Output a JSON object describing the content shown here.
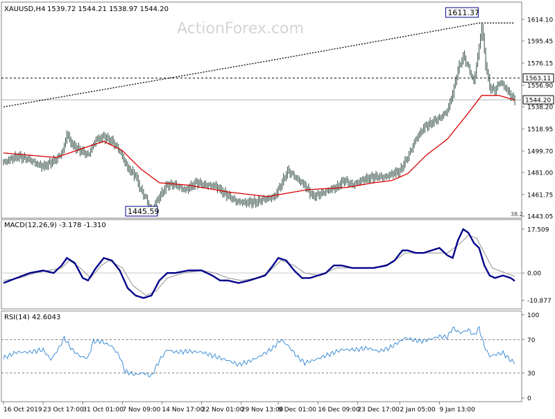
{
  "chart_data": [
    {
      "type": "candlestick",
      "symbol_label": "XAUUSD,H4",
      "ohlc_label": "1539.72 1544.21 1538.97 1544.20",
      "watermark": "ActionForex.com",
      "y_ticks": [
        "1614.10",
        "1595.45",
        "1576.15",
        "1556.90",
        "1538.20",
        "1518.95",
        "1499.70",
        "1481.00",
        "1461.75",
        "1443.05"
      ],
      "y_tick_values": [
        1614.1,
        1595.45,
        1576.15,
        1556.9,
        1538.2,
        1518.95,
        1499.7,
        1481.0,
        1461.75,
        1443.05
      ],
      "ylim": [
        1443.05,
        1626.2
      ],
      "fib_label": "38.2",
      "labels": {
        "high": "1611.37",
        "low": "1445.59",
        "level_1": "1563.11",
        "level_2": "1544.20"
      },
      "levels": [
        1563.11,
        1544.2
      ],
      "lows_marked": 1445.59,
      "highs_marked": 1611.37,
      "price_anchors": [
        [
          0,
          1490
        ],
        [
          10,
          1495
        ],
        [
          20,
          1492
        ],
        [
          30,
          1486
        ],
        [
          40,
          1492
        ],
        [
          45,
          1500
        ],
        [
          48,
          1515
        ],
        [
          52,
          1505
        ],
        [
          58,
          1500
        ],
        [
          64,
          1496
        ],
        [
          70,
          1510
        ],
        [
          76,
          1512
        ],
        [
          82,
          1508
        ],
        [
          88,
          1500
        ],
        [
          94,
          1485
        ],
        [
          100,
          1478
        ],
        [
          104,
          1465
        ],
        [
          108,
          1458
        ],
        [
          112,
          1448
        ],
        [
          118,
          1460
        ],
        [
          124,
          1470
        ],
        [
          130,
          1470
        ],
        [
          138,
          1466
        ],
        [
          146,
          1472
        ],
        [
          152,
          1470
        ],
        [
          160,
          1470
        ],
        [
          168,
          1462
        ],
        [
          176,
          1456
        ],
        [
          184,
          1455
        ],
        [
          192,
          1455
        ],
        [
          198,
          1458
        ],
        [
          205,
          1460
        ],
        [
          210,
          1470
        ],
        [
          215,
          1482
        ],
        [
          220,
          1478
        ],
        [
          228,
          1470
        ],
        [
          234,
          1460
        ],
        [
          240,
          1462
        ],
        [
          246,
          1466
        ],
        [
          252,
          1468
        ],
        [
          258,
          1474
        ],
        [
          264,
          1470
        ],
        [
          270,
          1474
        ],
        [
          276,
          1476
        ],
        [
          282,
          1477
        ],
        [
          288,
          1477
        ],
        [
          294,
          1480
        ],
        [
          300,
          1482
        ],
        [
          306,
          1494
        ],
        [
          312,
          1510
        ],
        [
          318,
          1520
        ],
        [
          324,
          1524
        ],
        [
          330,
          1528
        ],
        [
          336,
          1535
        ],
        [
          340,
          1550
        ],
        [
          344,
          1570
        ],
        [
          348,
          1582
        ],
        [
          352,
          1572
        ],
        [
          356,
          1560
        ],
        [
          360,
          1590
        ],
        [
          362,
          1609
        ],
        [
          365,
          1575
        ],
        [
          368,
          1555
        ],
        [
          372,
          1552
        ],
        [
          376,
          1560
        ],
        [
          380,
          1555
        ],
        [
          384,
          1548
        ],
        [
          387,
          1544
        ]
      ],
      "ma_red_anchors": [
        [
          0,
          1498
        ],
        [
          20,
          1496
        ],
        [
          40,
          1494
        ],
        [
          60,
          1502
        ],
        [
          76,
          1508
        ],
        [
          90,
          1500
        ],
        [
          104,
          1484
        ],
        [
          118,
          1472
        ],
        [
          140,
          1470
        ],
        [
          170,
          1464
        ],
        [
          200,
          1460
        ],
        [
          230,
          1466
        ],
        [
          260,
          1468
        ],
        [
          280,
          1472
        ],
        [
          294,
          1474
        ],
        [
          306,
          1480
        ],
        [
          320,
          1496
        ],
        [
          336,
          1510
        ],
        [
          350,
          1530
        ],
        [
          362,
          1548
        ],
        [
          375,
          1548
        ],
        [
          387,
          1544
        ]
      ],
      "ma_black_anchors": [
        [
          0,
          1538
        ],
        [
          200,
          1578
        ],
        [
          360,
          1611
        ]
      ],
      "bar_count": 388
    },
    {
      "type": "line",
      "indicator_label": "MACD(12,26,9) -3.178 -1.310",
      "y_ticks": [
        "17.509",
        "0.00",
        "-10.877"
      ],
      "y_tick_values": [
        17.509,
        0.0,
        -10.877
      ],
      "ylim": [
        -13.5,
        20.5
      ],
      "series": [
        {
          "name": "MACD",
          "color": "#00008b",
          "anchors": [
            [
              0,
              -4
            ],
            [
              10,
              -2
            ],
            [
              20,
              0
            ],
            [
              30,
              1
            ],
            [
              38,
              0
            ],
            [
              44,
              3
            ],
            [
              48,
              6
            ],
            [
              54,
              4
            ],
            [
              60,
              -2
            ],
            [
              64,
              -3
            ],
            [
              70,
              2
            ],
            [
              76,
              6
            ],
            [
              82,
              5
            ],
            [
              88,
              1
            ],
            [
              94,
              -6
            ],
            [
              100,
              -9
            ],
            [
              106,
              -10
            ],
            [
              112,
              -9
            ],
            [
              118,
              -3
            ],
            [
              124,
              0
            ],
            [
              130,
              0
            ],
            [
              140,
              1
            ],
            [
              150,
              1
            ],
            [
              158,
              -1
            ],
            [
              164,
              -3
            ],
            [
              170,
              -3
            ],
            [
              178,
              -4
            ],
            [
              186,
              -3
            ],
            [
              192,
              -2
            ],
            [
              198,
              -1
            ],
            [
              204,
              3
            ],
            [
              208,
              6
            ],
            [
              214,
              5
            ],
            [
              220,
              1
            ],
            [
              226,
              -2
            ],
            [
              232,
              -2
            ],
            [
              238,
              -1
            ],
            [
              244,
              0
            ],
            [
              250,
              3
            ],
            [
              256,
              3
            ],
            [
              264,
              2
            ],
            [
              272,
              2
            ],
            [
              280,
              2
            ],
            [
              290,
              3
            ],
            [
              296,
              5
            ],
            [
              302,
              9
            ],
            [
              306,
              9
            ],
            [
              312,
              8
            ],
            [
              318,
              8
            ],
            [
              324,
              9
            ],
            [
              330,
              10
            ],
            [
              336,
              7
            ],
            [
              340,
              6
            ],
            [
              344,
              13
            ],
            [
              348,
              17.5
            ],
            [
              352,
              16
            ],
            [
              356,
              12
            ],
            [
              360,
              10
            ],
            [
              364,
              3
            ],
            [
              368,
              -1
            ],
            [
              372,
              -2
            ],
            [
              378,
              -1
            ],
            [
              384,
              -2
            ],
            [
              387,
              -3.178
            ]
          ]
        },
        {
          "name": "Signal",
          "color": "#909090",
          "anchors": [
            [
              0,
              -3
            ],
            [
              12,
              -2
            ],
            [
              24,
              0
            ],
            [
              34,
              1
            ],
            [
              44,
              2
            ],
            [
              50,
              5
            ],
            [
              58,
              2
            ],
            [
              66,
              -2
            ],
            [
              74,
              3
            ],
            [
              80,
              5
            ],
            [
              90,
              2
            ],
            [
              98,
              -5
            ],
            [
              108,
              -9
            ],
            [
              116,
              -7
            ],
            [
              124,
              -2
            ],
            [
              136,
              0
            ],
            [
              150,
              1
            ],
            [
              160,
              0
            ],
            [
              170,
              -2
            ],
            [
              180,
              -3
            ],
            [
              192,
              -2
            ],
            [
              200,
              0
            ],
            [
              210,
              5
            ],
            [
              220,
              3
            ],
            [
              228,
              0
            ],
            [
              240,
              -1
            ],
            [
              252,
              2
            ],
            [
              264,
              2
            ],
            [
              280,
              2
            ],
            [
              294,
              4
            ],
            [
              304,
              8
            ],
            [
              316,
              8
            ],
            [
              326,
              8
            ],
            [
              336,
              8
            ],
            [
              346,
              12
            ],
            [
              352,
              15
            ],
            [
              358,
              14
            ],
            [
              364,
              8
            ],
            [
              370,
              2
            ],
            [
              380,
              0
            ],
            [
              387,
              -1.31
            ]
          ]
        }
      ]
    },
    {
      "type": "line",
      "indicator_label": "RSI(14) 42.6043",
      "y_ticks": [
        "100",
        "70",
        "30",
        "0"
      ],
      "y_tick_values": [
        100,
        70,
        30,
        0
      ],
      "ylim": [
        -2,
        102
      ],
      "levels": [
        70,
        30
      ],
      "series": [
        {
          "name": "RSI(14)",
          "color": "#3f8fd8",
          "anchors": [
            [
              0,
              48
            ],
            [
              10,
              55
            ],
            [
              20,
              55
            ],
            [
              30,
              58
            ],
            [
              36,
              46
            ],
            [
              42,
              60
            ],
            [
              46,
              72
            ],
            [
              52,
              58
            ],
            [
              58,
              50
            ],
            [
              64,
              48
            ],
            [
              68,
              68
            ],
            [
              74,
              68
            ],
            [
              82,
              62
            ],
            [
              88,
              50
            ],
            [
              92,
              32
            ],
            [
              100,
              28
            ],
            [
              106,
              30
            ],
            [
              112,
              26
            ],
            [
              118,
              45
            ],
            [
              124,
              58
            ],
            [
              130,
              55
            ],
            [
              140,
              56
            ],
            [
              150,
              55
            ],
            [
              160,
              50
            ],
            [
              170,
              45
            ],
            [
              178,
              40
            ],
            [
              186,
              44
            ],
            [
              194,
              50
            ],
            [
              204,
              60
            ],
            [
              210,
              70
            ],
            [
              216,
              62
            ],
            [
              222,
              50
            ],
            [
              228,
              42
            ],
            [
              236,
              46
            ],
            [
              246,
              52
            ],
            [
              256,
              58
            ],
            [
              266,
              58
            ],
            [
              276,
              60
            ],
            [
              284,
              56
            ],
            [
              292,
              60
            ],
            [
              298,
              66
            ],
            [
              304,
              72
            ],
            [
              310,
              70
            ],
            [
              316,
              68
            ],
            [
              322,
              70
            ],
            [
              330,
              74
            ],
            [
              336,
              73
            ],
            [
              340,
              84
            ],
            [
              346,
              78
            ],
            [
              352,
              82
            ],
            [
              356,
              75
            ],
            [
              360,
              84
            ],
            [
              364,
              62
            ],
            [
              368,
              50
            ],
            [
              372,
              52
            ],
            [
              378,
              54
            ],
            [
              384,
              45
            ],
            [
              387,
              42.6
            ]
          ]
        }
      ]
    }
  ],
  "x_axis": {
    "ticks": [
      {
        "bar": 0,
        "label": "16 Oct 2019"
      },
      {
        "bar": 30,
        "label": "23 Oct 17:00"
      },
      {
        "bar": 60,
        "label": "31 Oct 01:00"
      },
      {
        "bar": 90,
        "label": "7 Nov 09:00"
      },
      {
        "bar": 120,
        "label": "14 Nov 17:00"
      },
      {
        "bar": 150,
        "label": "22 Nov 01:00"
      },
      {
        "bar": 180,
        "label": "29 Nov 13:00"
      },
      {
        "bar": 208,
        "label": "9 Dec 01:00"
      },
      {
        "bar": 238,
        "label": "16 Dec 09:00"
      },
      {
        "bar": 268,
        "label": "23 Dec 17:00"
      },
      {
        "bar": 300,
        "label": "2 Jan 05:00"
      },
      {
        "bar": 330,
        "label": "9 Jan 13:00"
      }
    ]
  },
  "colors": {
    "candle": "#2e4a3e",
    "ma_red": "#d90000",
    "ma_black": "#000000",
    "grid_line": "#808080",
    "pane_border": "#808080",
    "label_box_border": "#00008b",
    "text": "#000000",
    "watermark": "#d4d4d4"
  }
}
